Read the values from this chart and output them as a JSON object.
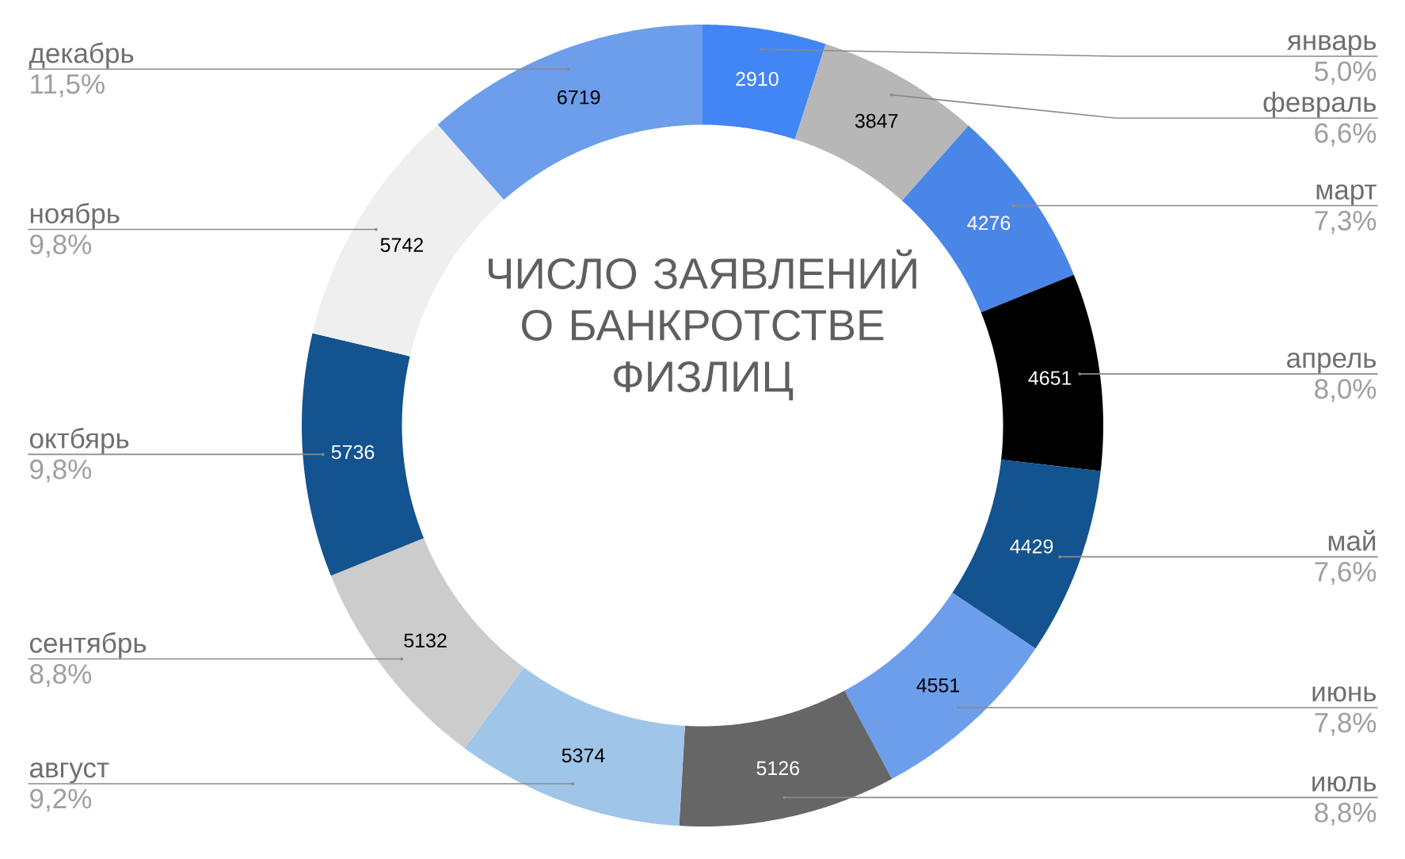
{
  "chart_data": {
    "type": "donut",
    "title": "ЧИСЛО ЗАЯВЛЕНИЙ О БАНКРОТСТВЕ ФИЗЛИЦ",
    "categories": [
      "январь",
      "февраль",
      "март",
      "апрель",
      "май",
      "июнь",
      "июль",
      "август",
      "сентябрь",
      "октбярь",
      "ноябрь",
      "декабрь"
    ],
    "values": [
      2910,
      3847,
      4276,
      4651,
      4429,
      4551,
      5126,
      5374,
      5132,
      5736,
      5742,
      6719
    ],
    "colors": [
      "#4285f4",
      "#b7b7b7",
      "#4a86e8",
      "#000000",
      "#13538f",
      "#6d9eeb",
      "#666666",
      "#9fc5e8",
      "#cccccc",
      "#13538f",
      "#efefef",
      "#6d9eeb"
    ],
    "data_labels": true,
    "annotations": [
      "5,0%",
      "6,6%",
      "7,3%",
      "8,0%",
      "7,6%",
      "7,8%",
      "8,8%",
      "9,2%",
      "8,8%",
      "9,8%",
      "9,8%",
      "11,5%"
    ]
  }
}
